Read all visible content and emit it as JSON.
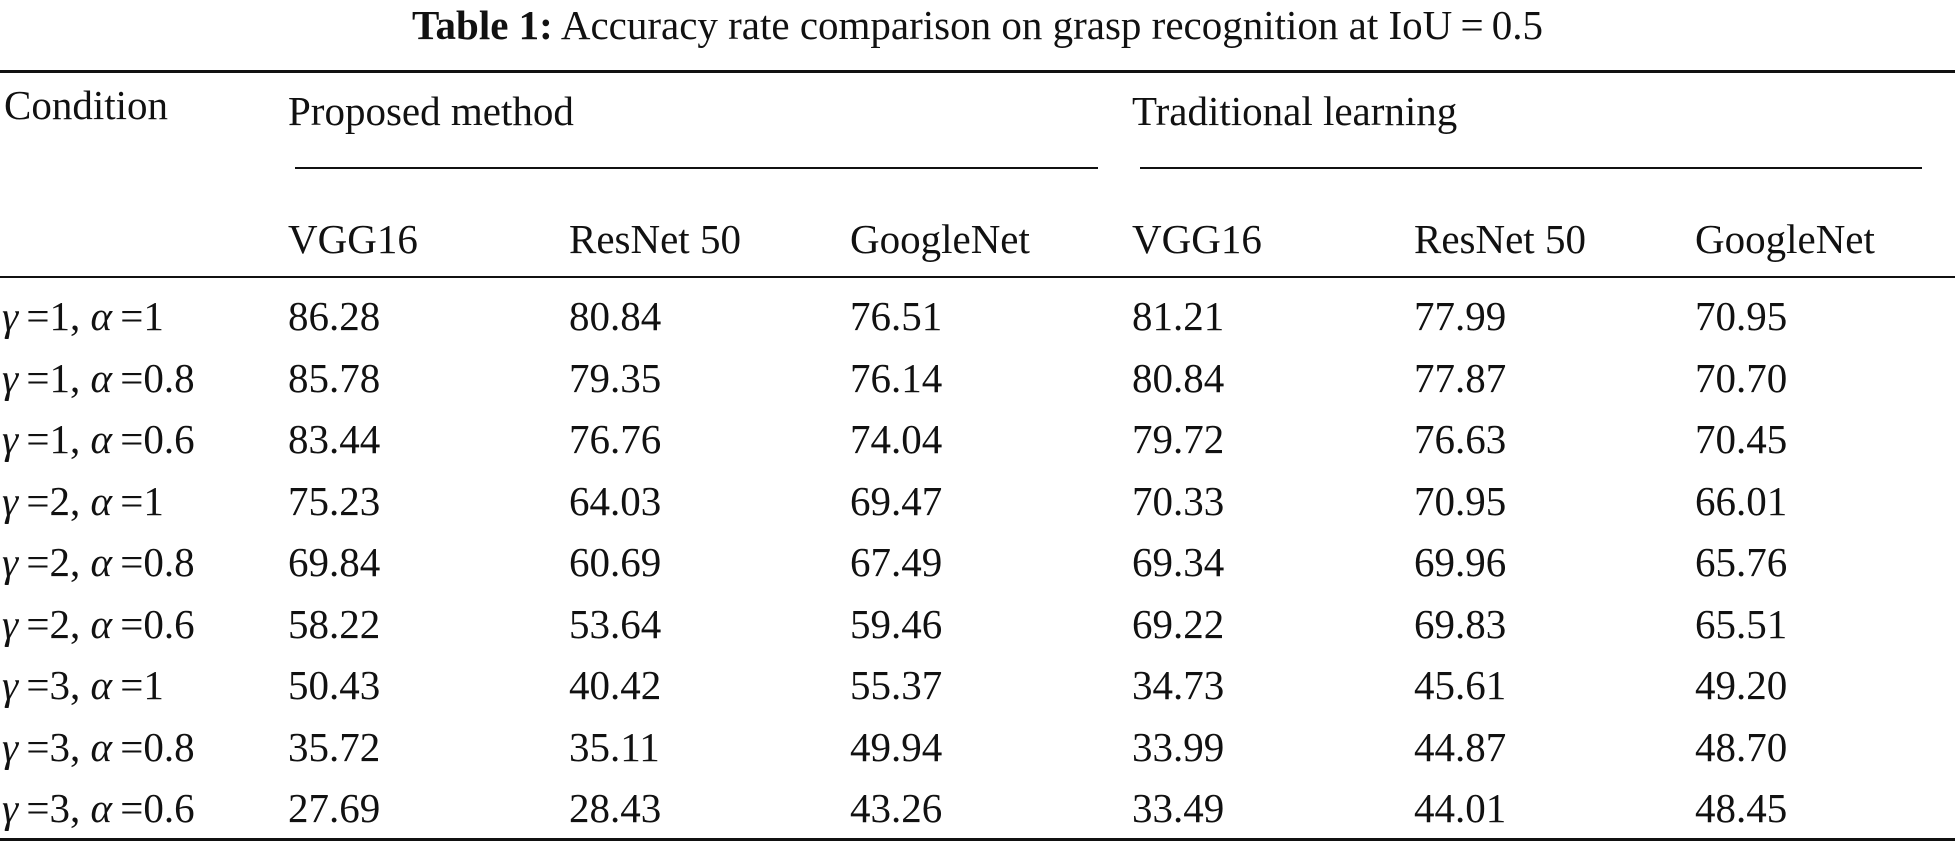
{
  "caption": {
    "label": "Table 1:",
    "text": "Accuracy rate comparison on grasp recognition at IoU = 0.5"
  },
  "table": {
    "condition_header": "Condition",
    "groups": [
      "Proposed method",
      "Traditional learning"
    ],
    "columns": [
      "VGG16",
      "ResNet 50",
      "GoogleNet",
      "VGG16",
      "ResNet 50",
      "GoogleNet"
    ],
    "rows": [
      {
        "condition": "γ =1, α =1",
        "values": [
          "86.28",
          "80.84",
          "76.51",
          "81.21",
          "77.99",
          "70.95"
        ]
      },
      {
        "condition": "γ =1, α =0.8",
        "values": [
          "85.78",
          "79.35",
          "76.14",
          "80.84",
          "77.87",
          "70.70"
        ]
      },
      {
        "condition": "γ =1, α =0.6",
        "values": [
          "83.44",
          "76.76",
          "74.04",
          "79.72",
          "76.63",
          "70.45"
        ]
      },
      {
        "condition": "γ =2, α =1",
        "values": [
          "75.23",
          "64.03",
          "69.47",
          "70.33",
          "70.95",
          "66.01"
        ]
      },
      {
        "condition": "γ =2, α =0.8",
        "values": [
          "69.84",
          "60.69",
          "67.49",
          "69.34",
          "69.96",
          "65.76"
        ]
      },
      {
        "condition": "γ =2, α =0.6",
        "values": [
          "58.22",
          "53.64",
          "59.46",
          "69.22",
          "69.83",
          "65.51"
        ]
      },
      {
        "condition": "γ =3, α =1",
        "values": [
          "50.43",
          "40.42",
          "55.37",
          "34.73",
          "45.61",
          "49.20"
        ]
      },
      {
        "condition": "γ =3, α =0.8",
        "values": [
          "35.72",
          "35.11",
          "49.94",
          "33.99",
          "44.87",
          "48.70"
        ]
      },
      {
        "condition": "γ =3, α =0.6",
        "values": [
          "27.69",
          "28.43",
          "43.26",
          "33.49",
          "44.01",
          "48.45"
        ]
      }
    ]
  }
}
